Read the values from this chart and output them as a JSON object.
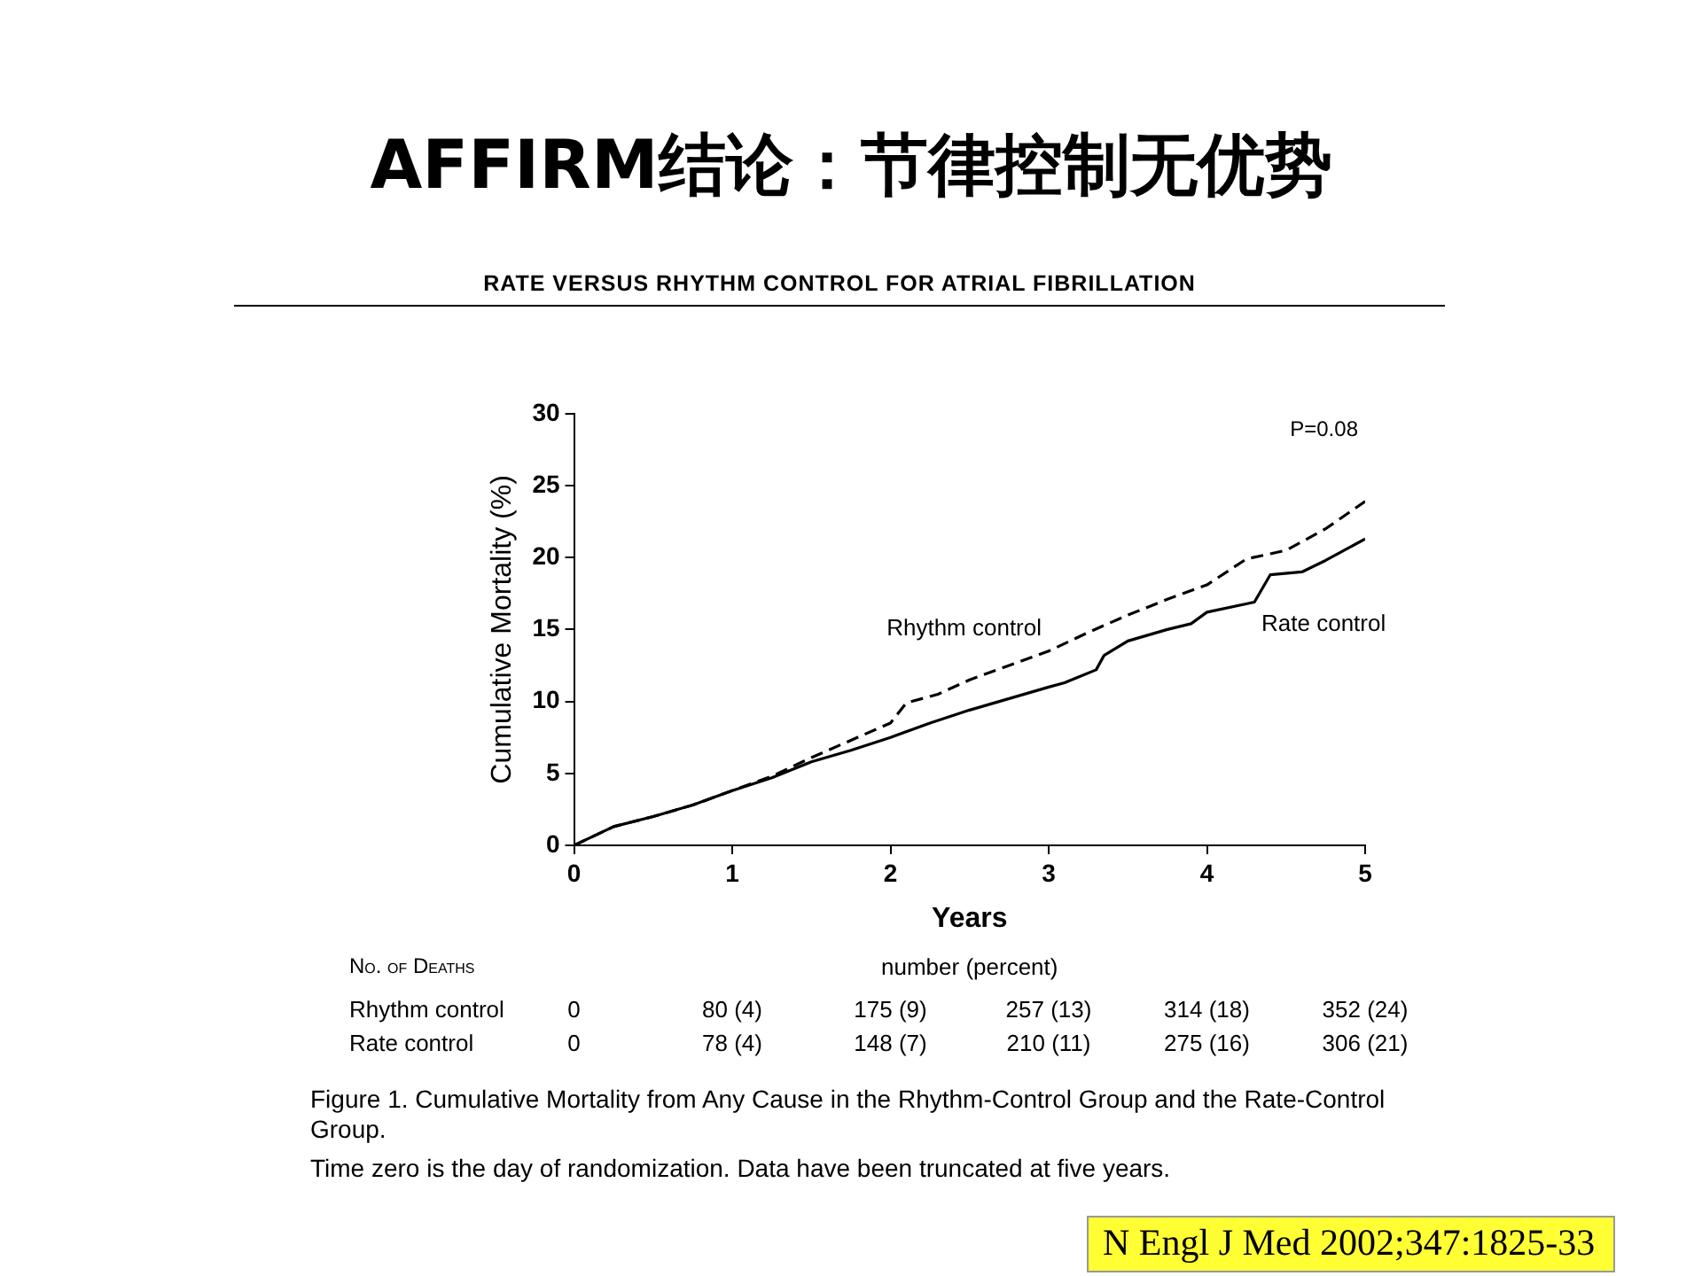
{
  "chart_data": {
    "type": "line",
    "title": "AFFIRM结论：节律控制无优势",
    "subtitle": "RATE VERSUS RHYTHM CONTROL FOR ATRIAL FIBRILLATION",
    "xlabel": "Years",
    "ylabel": "Cumulative Mortality (%)",
    "xlim": [
      0,
      5
    ],
    "xticks": [
      0,
      1,
      2,
      3,
      4,
      5
    ],
    "ylim": [
      0,
      30
    ],
    "yticks": [
      0,
      5,
      10,
      15,
      20,
      25,
      30
    ],
    "grid": false,
    "legend": false,
    "marker": "none",
    "series": [
      {
        "name": "Rhythm control",
        "color": "#000000",
        "line_style": "dashed",
        "x": [
          0,
          0.25,
          0.5,
          0.75,
          1,
          1.25,
          1.5,
          1.75,
          2,
          2.1,
          2.3,
          2.5,
          2.75,
          3,
          3.25,
          3.5,
          3.75,
          4,
          4.25,
          4.5,
          4.75,
          5
        ],
        "values": [
          0,
          1.3,
          2.0,
          2.8,
          3.8,
          4.8,
          6.1,
          7.3,
          8.5,
          9.9,
          10.5,
          11.5,
          12.5,
          13.5,
          14.8,
          16.0,
          17.1,
          18.1,
          19.9,
          20.5,
          22.0,
          23.9
        ]
      },
      {
        "name": "Rate control",
        "color": "#000000",
        "line_style": "solid",
        "x": [
          0,
          0.25,
          0.5,
          0.75,
          1,
          1.25,
          1.5,
          1.75,
          2,
          2.25,
          2.5,
          2.75,
          3,
          3.1,
          3.3,
          3.35,
          3.5,
          3.75,
          3.9,
          4,
          4.3,
          4.4,
          4.6,
          4.75,
          4.9,
          5
        ],
        "values": [
          0,
          1.3,
          2.0,
          2.8,
          3.8,
          4.7,
          5.8,
          6.6,
          7.5,
          8.5,
          9.4,
          10.2,
          11.0,
          11.3,
          12.2,
          13.2,
          14.2,
          15.0,
          15.4,
          16.2,
          16.9,
          18.8,
          19.0,
          19.8,
          20.7,
          21.3
        ]
      }
    ],
    "annotations": [
      "P=0.08",
      "No. of Deaths",
      "number (percent)",
      "Rhythm control",
      "0",
      "80 (4)",
      "175 (9)",
      "257 (13)",
      "314 (18)",
      "352 (24)",
      "Rate control",
      "0",
      "78 (4)",
      "148 (7)",
      "210 (11)",
      "275 (16)",
      "306 (21)",
      "Figure 1. Cumulative Mortality from Any Cause in the Rhythm-Control Group and the Rate-Control Group.",
      "Time zero is the day of randomization. Data have been truncated at five years.",
      "N Engl J Med 2002;347:1825-33"
    ]
  }
}
